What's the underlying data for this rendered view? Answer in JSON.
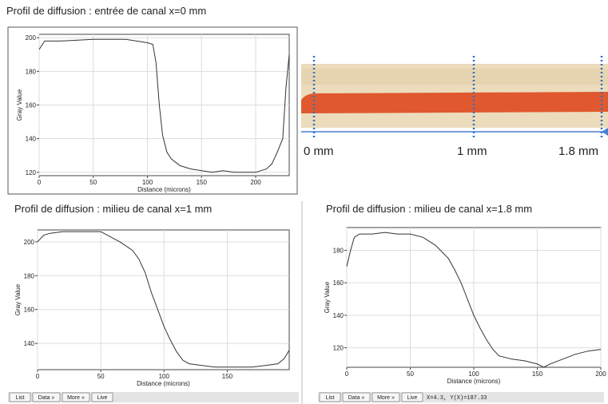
{
  "chart_data": [
    {
      "type": "line",
      "title": "Profil de diffusion : entrée de canal x=0 mm",
      "xlabel": "Distance (microns)",
      "ylabel": "Gray Value",
      "color": "#333333",
      "grid": true,
      "x": [
        0,
        5,
        20,
        50,
        80,
        100,
        105,
        108,
        111,
        114,
        118,
        122,
        130,
        140,
        150,
        160,
        170,
        180,
        190,
        200,
        205,
        210,
        215,
        220,
        225,
        228,
        231
      ],
      "values": [
        193,
        198,
        198,
        199,
        199,
        197,
        196,
        185,
        160,
        142,
        132,
        128,
        124,
        122,
        121,
        120,
        121,
        120,
        120,
        120,
        121,
        122,
        125,
        132,
        140,
        170,
        190
      ],
      "xlim": [
        0,
        231
      ],
      "ylim": [
        118,
        202
      ],
      "xticks": [
        0,
        50,
        100,
        150,
        200
      ],
      "yticks": [
        120,
        140,
        160,
        180,
        200
      ]
    },
    {
      "type": "line",
      "title": "Profil de diffusion : milieu de canal x=1 mm",
      "xlabel": "Distance (microns)",
      "ylabel": "Gray Value",
      "color": "#333333",
      "grid": true,
      "x": [
        0,
        5,
        10,
        20,
        30,
        40,
        50,
        55,
        65,
        75,
        80,
        85,
        90,
        95,
        100,
        105,
        110,
        115,
        120,
        130,
        140,
        150,
        160,
        170,
        180,
        190,
        195,
        199
      ],
      "values": [
        200,
        204,
        205,
        206,
        206,
        206,
        206,
        204,
        200,
        195,
        190,
        182,
        170,
        160,
        150,
        142,
        135,
        130,
        128,
        127,
        126,
        126,
        126,
        126,
        127,
        128,
        131,
        136
      ],
      "xlim": [
        0,
        199
      ],
      "ylim": [
        124.5,
        207
      ],
      "xticks": [
        0,
        50,
        100,
        150
      ],
      "yticks": [
        140,
        160,
        180,
        200
      ]
    },
    {
      "type": "line",
      "title": "Profil de diffusion : milieu de canal x=1.8 mm",
      "xlabel": "Distance (microns)",
      "ylabel": "Gray Value",
      "color": "#333333",
      "grid": true,
      "x": [
        0,
        3,
        6,
        10,
        20,
        30,
        40,
        50,
        60,
        70,
        80,
        85,
        90,
        95,
        100,
        105,
        110,
        115,
        120,
        130,
        140,
        150,
        155,
        160,
        170,
        180,
        190,
        200
      ],
      "values": [
        170,
        180,
        188,
        190,
        190,
        191,
        190,
        190,
        188,
        183,
        175,
        168,
        160,
        150,
        140,
        132,
        125,
        119,
        115,
        113,
        112,
        110,
        108,
        110,
        113,
        116,
        118,
        119
      ],
      "xlim": [
        0,
        200
      ],
      "ylim": [
        108,
        194
      ],
      "xticks": [
        0,
        50,
        100,
        150,
        200
      ],
      "yticks": [
        120,
        140,
        160,
        180
      ]
    }
  ],
  "photo": {
    "labels": [
      "0 mm",
      "1 mm",
      "1.8 mm"
    ]
  },
  "toolbars": [
    {
      "buttons": [
        "List",
        "Data »",
        "More »",
        "Live"
      ]
    },
    {
      "buttons": [
        "List",
        "Data »",
        "More »",
        "Live"
      ],
      "status": "X=4.3, Y(X)=187.33"
    }
  ]
}
